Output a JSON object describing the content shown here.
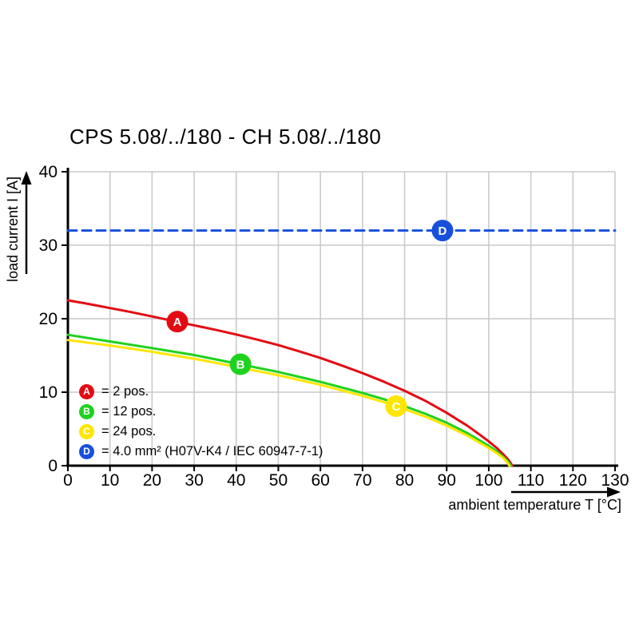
{
  "title": "CPS 5.08/../180 - CH 5.08/../180",
  "chart_data": {
    "type": "line",
    "title": "CPS 5.08/../180 - CH 5.08/../180",
    "xlabel": "ambient temperature T [°C]",
    "ylabel": "load current I [A]",
    "xlim": [
      0,
      130
    ],
    "ylim": [
      0,
      40
    ],
    "xticks": [
      0,
      10,
      20,
      30,
      40,
      50,
      60,
      70,
      80,
      90,
      100,
      110,
      120,
      130
    ],
    "yticks": [
      0,
      10,
      20,
      30,
      40
    ],
    "grid": true,
    "grid_color": "#c8c8c8",
    "axis_color": "#000000",
    "series": [
      {
        "id": "A",
        "name": "2 pos.",
        "color": "#e30b13",
        "style": "solid",
        "points": [
          [
            0,
            22.5
          ],
          [
            5,
            22.0
          ],
          [
            10,
            21.45
          ],
          [
            15,
            20.9
          ],
          [
            20,
            20.3
          ],
          [
            25,
            19.7
          ],
          [
            30,
            19.1
          ],
          [
            35,
            18.5
          ],
          [
            40,
            17.85
          ],
          [
            45,
            17.15
          ],
          [
            50,
            16.4
          ],
          [
            55,
            15.55
          ],
          [
            60,
            14.65
          ],
          [
            65,
            13.65
          ],
          [
            70,
            12.6
          ],
          [
            75,
            11.45
          ],
          [
            80,
            10.2
          ],
          [
            85,
            8.8
          ],
          [
            90,
            7.2
          ],
          [
            95,
            5.4
          ],
          [
            98,
            4.15
          ],
          [
            100,
            3.3
          ],
          [
            102,
            2.35
          ],
          [
            103.5,
            1.5
          ],
          [
            104.5,
            0.9
          ],
          [
            105.2,
            0.35
          ],
          [
            105.6,
            0
          ]
        ],
        "marker": {
          "label": "A",
          "x": 26,
          "y": 19.6
        }
      },
      {
        "id": "B",
        "name": "12 pos.",
        "color": "#1ed21e",
        "style": "solid",
        "points": [
          [
            0,
            17.8
          ],
          [
            10,
            16.9
          ],
          [
            20,
            16.0
          ],
          [
            30,
            15.05
          ],
          [
            40,
            13.9
          ],
          [
            50,
            12.75
          ],
          [
            60,
            11.4
          ],
          [
            70,
            9.9
          ],
          [
            75,
            9.05
          ],
          [
            80,
            8.1
          ],
          [
            85,
            7.05
          ],
          [
            90,
            5.85
          ],
          [
            95,
            4.4
          ],
          [
            100,
            2.7
          ],
          [
            102,
            1.9
          ],
          [
            103.5,
            1.15
          ],
          [
            104.5,
            0.6
          ],
          [
            105.3,
            0
          ]
        ],
        "marker": {
          "label": "B",
          "x": 41,
          "y": 13.8
        }
      },
      {
        "id": "C",
        "name": "24 pos.",
        "color": "#ffe600",
        "style": "solid",
        "points": [
          [
            0,
            17.1
          ],
          [
            10,
            16.35
          ],
          [
            20,
            15.5
          ],
          [
            30,
            14.55
          ],
          [
            40,
            13.45
          ],
          [
            50,
            12.3
          ],
          [
            60,
            11.0
          ],
          [
            70,
            9.5
          ],
          [
            75,
            8.65
          ],
          [
            80,
            7.7
          ],
          [
            85,
            6.65
          ],
          [
            90,
            5.45
          ],
          [
            95,
            4.05
          ],
          [
            100,
            2.4
          ],
          [
            102,
            1.65
          ],
          [
            103.5,
            1.0
          ],
          [
            104.3,
            0.5
          ],
          [
            104.9,
            0
          ]
        ],
        "marker": {
          "label": "C",
          "x": 78,
          "y": 8.1
        }
      },
      {
        "id": "D",
        "name": "4.0 mm² (H07V-K4 / IEC 60947-7-1)",
        "color": "#1850dd",
        "style": "dashed",
        "points": [
          [
            0,
            32
          ],
          [
            130,
            32
          ]
        ],
        "marker": {
          "label": "D",
          "x": 89,
          "y": 32
        }
      }
    ],
    "legend": {
      "position": "lower-left",
      "items": [
        {
          "label": "A",
          "color": "#e30b13",
          "text": "= 2 pos."
        },
        {
          "label": "B",
          "color": "#1ed21e",
          "text": "= 12 pos."
        },
        {
          "label": "C",
          "color": "#ffe600",
          "text": "= 24 pos."
        },
        {
          "label": "D",
          "color": "#1850dd",
          "text": "= 4.0 mm² (H07V-K4 / IEC 60947-7-1)"
        }
      ]
    }
  }
}
